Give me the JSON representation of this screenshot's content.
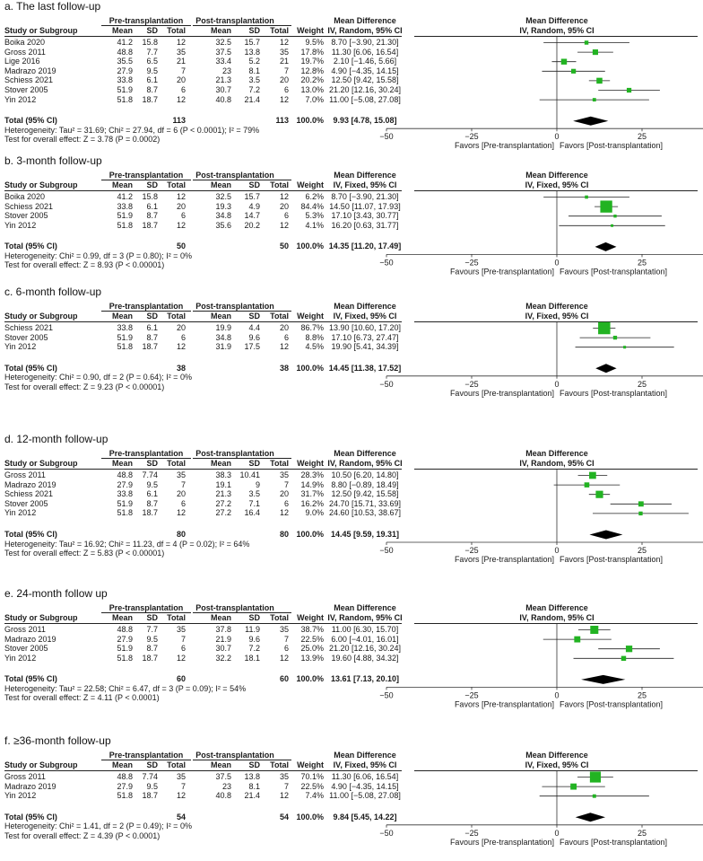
{
  "headers": {
    "study": "Study or Subgroup",
    "pre": "Pre-transplantation",
    "post": "Post-transplantation",
    "mean": "Mean",
    "sd": "SD",
    "total": "Total",
    "weight": "Weight",
    "md": "Mean Difference"
  },
  "axis_ticks": [
    "−50",
    "−25",
    "0",
    "25",
    "50"
  ],
  "chart_data": [
    {
      "type": "forest",
      "title": "a. The last follow-up",
      "method": "IV, Random, 95% CI",
      "favors_left": "Favors [Pre-transplantation]",
      "favors_right": "Favors [Post-transplantation]",
      "xlim": [
        -50,
        50
      ],
      "rows": [
        {
          "study": "Boika 2020",
          "pre_mean": "41.2",
          "pre_sd": "15.8",
          "pre_n": "12",
          "post_mean": "32.5",
          "post_sd": "15.7",
          "post_n": "12",
          "weight": "9.5%",
          "ci_text": "8.70 [−3.90, 21.30]",
          "md": 8.7,
          "lo": -3.9,
          "hi": 21.3,
          "w": 9.5
        },
        {
          "study": "Gross 2011",
          "pre_mean": "48.8",
          "pre_sd": "7.7",
          "pre_n": "35",
          "post_mean": "37.5",
          "post_sd": "13.8",
          "post_n": "35",
          "weight": "17.8%",
          "ci_text": "11.30 [6.06, 16.54]",
          "md": 11.3,
          "lo": 6.06,
          "hi": 16.54,
          "w": 17.8
        },
        {
          "study": "Lige 2016",
          "pre_mean": "35.5",
          "pre_sd": "6.5",
          "pre_n": "21",
          "post_mean": "33.4",
          "post_sd": "5.2",
          "post_n": "21",
          "weight": "19.7%",
          "ci_text": "2.10 [−1.46, 5.66]",
          "md": 2.1,
          "lo": -1.46,
          "hi": 5.66,
          "w": 19.7
        },
        {
          "study": "Madrazo 2019",
          "pre_mean": "27.9",
          "pre_sd": "9.5",
          "pre_n": "7",
          "post_mean": "23",
          "post_sd": "8.1",
          "post_n": "7",
          "weight": "12.8%",
          "ci_text": "4.90 [−4.35, 14.15]",
          "md": 4.9,
          "lo": -4.35,
          "hi": 14.15,
          "w": 12.8
        },
        {
          "study": "Schiess 2021",
          "pre_mean": "33.8",
          "pre_sd": "6.1",
          "pre_n": "20",
          "post_mean": "21.3",
          "post_sd": "3.5",
          "post_n": "20",
          "weight": "20.2%",
          "ci_text": "12.50 [9.42, 15.58]",
          "md": 12.5,
          "lo": 9.42,
          "hi": 15.58,
          "w": 20.2
        },
        {
          "study": "Stover 2005",
          "pre_mean": "51.9",
          "pre_sd": "8.7",
          "pre_n": "6",
          "post_mean": "30.7",
          "post_sd": "7.2",
          "post_n": "6",
          "weight": "13.0%",
          "ci_text": "21.20 [12.16, 30.24]",
          "md": 21.2,
          "lo": 12.16,
          "hi": 30.24,
          "w": 13.0
        },
        {
          "study": "Yin 2012",
          "pre_mean": "51.8",
          "pre_sd": "18.7",
          "pre_n": "12",
          "post_mean": "40.8",
          "post_sd": "21.4",
          "post_n": "12",
          "weight": "7.0%",
          "ci_text": "11.00 [−5.08, 27.08]",
          "md": 11.0,
          "lo": -5.08,
          "hi": 27.08,
          "w": 7.0
        }
      ],
      "total": {
        "label": "Total (95% CI)",
        "pre_n": "113",
        "post_n": "113",
        "weight": "100.0%",
        "ci_text": "9.93 [4.78, 15.08]",
        "md": 9.93,
        "lo": 4.78,
        "hi": 15.08
      },
      "heterogeneity": "Heterogeneity: Tau² = 31.69; Chi² = 27.94, df = 6 (P < 0.0001); I² = 79%",
      "overall": "Test for overall effect: Z = 3.78 (P = 0.0002)"
    },
    {
      "type": "forest",
      "title": "b. 3-month follow-up",
      "method": "IV, Fixed, 95% CI",
      "favors_left": "Favours [Pre-transplantation]",
      "favors_right": "Favours [Post-transplantation]",
      "xlim": [
        -50,
        50
      ],
      "rows": [
        {
          "study": "Boika 2020",
          "pre_mean": "41.2",
          "pre_sd": "15.8",
          "pre_n": "12",
          "post_mean": "32.5",
          "post_sd": "15.7",
          "post_n": "12",
          "weight": "6.2%",
          "ci_text": "8.70 [−3.90, 21.30]",
          "md": 8.7,
          "lo": -3.9,
          "hi": 21.3,
          "w": 6.2
        },
        {
          "study": "Schiess 2021",
          "pre_mean": "33.8",
          "pre_sd": "6.1",
          "pre_n": "20",
          "post_mean": "19.3",
          "post_sd": "4.9",
          "post_n": "20",
          "weight": "84.4%",
          "ci_text": "14.50 [11.07, 17.93]",
          "md": 14.5,
          "lo": 11.07,
          "hi": 17.93,
          "w": 84.4
        },
        {
          "study": "Stover 2005",
          "pre_mean": "51.9",
          "pre_sd": "8.7",
          "pre_n": "6",
          "post_mean": "34.8",
          "post_sd": "14.7",
          "post_n": "6",
          "weight": "5.3%",
          "ci_text": "17.10 [3.43, 30.77]",
          "md": 17.1,
          "lo": 3.43,
          "hi": 30.77,
          "w": 5.3
        },
        {
          "study": "Yin 2012",
          "pre_mean": "51.8",
          "pre_sd": "18.7",
          "pre_n": "12",
          "post_mean": "35.6",
          "post_sd": "20.2",
          "post_n": "12",
          "weight": "4.1%",
          "ci_text": "16.20 [0.63, 31.77]",
          "md": 16.2,
          "lo": 0.63,
          "hi": 31.77,
          "w": 4.1
        }
      ],
      "total": {
        "label": "Total (95% CI)",
        "pre_n": "50",
        "post_n": "50",
        "weight": "100.0%",
        "ci_text": "14.35 [11.20, 17.49]",
        "md": 14.35,
        "lo": 11.2,
        "hi": 17.49
      },
      "heterogeneity": "Heterogeneity: Chi² = 0.99, df = 3 (P = 0.80); I² = 0%",
      "overall": "Test for overall effect: Z = 8.93 (P < 0.00001)"
    },
    {
      "type": "forest",
      "title": "c. 6-month follow-up",
      "method": "IV, Fixed, 95% CI",
      "favors_left": "Favours [Pre-transplantation]",
      "favors_right": "Favours [Post-transplantation]",
      "xlim": [
        -50,
        50
      ],
      "rows": [
        {
          "study": "Schiess 2021",
          "pre_mean": "33.8",
          "pre_sd": "6.1",
          "pre_n": "20",
          "post_mean": "19.9",
          "post_sd": "4.4",
          "post_n": "20",
          "weight": "86.7%",
          "ci_text": "13.90 [10.60, 17.20]",
          "md": 13.9,
          "lo": 10.6,
          "hi": 17.2,
          "w": 86.7
        },
        {
          "study": "Stover 2005",
          "pre_mean": "51.9",
          "pre_sd": "8.7",
          "pre_n": "6",
          "post_mean": "34.8",
          "post_sd": "9.6",
          "post_n": "6",
          "weight": "8.8%",
          "ci_text": "17.10 [6.73, 27.47]",
          "md": 17.1,
          "lo": 6.73,
          "hi": 27.47,
          "w": 8.8
        },
        {
          "study": "Yin 2012",
          "pre_mean": "51.8",
          "pre_sd": "18.7",
          "pre_n": "12",
          "post_mean": "31.9",
          "post_sd": "17.5",
          "post_n": "12",
          "weight": "4.5%",
          "ci_text": "19.90 [5.41, 34.39]",
          "md": 19.9,
          "lo": 5.41,
          "hi": 34.39,
          "w": 4.5
        }
      ],
      "total": {
        "label": "Total (95% CI)",
        "pre_n": "38",
        "post_n": "38",
        "weight": "100.0%",
        "ci_text": "14.45 [11.38, 17.52]",
        "md": 14.45,
        "lo": 11.38,
        "hi": 17.52
      },
      "heterogeneity": "Heterogeneity: Chi² = 0.90, df = 2 (P = 0.64); I² = 0%",
      "overall": "Test for overall effect: Z = 9.23 (P < 0.00001)"
    },
    {
      "type": "forest",
      "title": "d. 12-month follow-up",
      "method": "IV, Random, 95% CI",
      "favors_left": "Favors [Pre-transplantation]",
      "favors_right": "Favors [Post-transplantation]",
      "xlim": [
        -50,
        50
      ],
      "rows": [
        {
          "study": "Gross 2011",
          "pre_mean": "48.8",
          "pre_sd": "7.74",
          "pre_n": "35",
          "post_mean": "38.3",
          "post_sd": "10.41",
          "post_n": "35",
          "weight": "28.3%",
          "ci_text": "10.50 [6.20, 14.80]",
          "md": 10.5,
          "lo": 6.2,
          "hi": 14.8,
          "w": 28.3
        },
        {
          "study": "Madrazo 2019",
          "pre_mean": "27.9",
          "pre_sd": "9.5",
          "pre_n": "7",
          "post_mean": "19.1",
          "post_sd": "9",
          "post_n": "7",
          "weight": "14.9%",
          "ci_text": "8.80 [−0.89, 18.49]",
          "md": 8.8,
          "lo": -0.89,
          "hi": 18.49,
          "w": 14.9
        },
        {
          "study": "Schiess 2021",
          "pre_mean": "33.8",
          "pre_sd": "6.1",
          "pre_n": "20",
          "post_mean": "21.3",
          "post_sd": "3.5",
          "post_n": "20",
          "weight": "31.7%",
          "ci_text": "12.50 [9.42, 15.58]",
          "md": 12.5,
          "lo": 9.42,
          "hi": 15.58,
          "w": 31.7
        },
        {
          "study": "Stover 2005",
          "pre_mean": "51.9",
          "pre_sd": "8.7",
          "pre_n": "6",
          "post_mean": "27.2",
          "post_sd": "7.1",
          "post_n": "6",
          "weight": "16.2%",
          "ci_text": "24.70 [15.71, 33.69]",
          "md": 24.7,
          "lo": 15.71,
          "hi": 33.69,
          "w": 16.2
        },
        {
          "study": "Yin 2012",
          "pre_mean": "51.8",
          "pre_sd": "18.7",
          "pre_n": "12",
          "post_mean": "27.2",
          "post_sd": "16.4",
          "post_n": "12",
          "weight": "9.0%",
          "ci_text": "24.60 [10.53, 38.67]",
          "md": 24.6,
          "lo": 10.53,
          "hi": 38.67,
          "w": 9.0
        }
      ],
      "total": {
        "label": "Total (95% CI)",
        "pre_n": "80",
        "post_n": "80",
        "weight": "100.0%",
        "ci_text": "14.45 [9.59, 19.31]",
        "md": 14.45,
        "lo": 9.59,
        "hi": 19.31
      },
      "heterogeneity": "Heterogeneity: Tau² = 16.92; Chi² = 11.23, df = 4 (P = 0.02); I² = 64%",
      "overall": "Test for overall effect: Z = 5.83 (P < 0.00001)"
    },
    {
      "type": "forest",
      "title": "e. 24-month follow up",
      "method": "IV, Random, 95% CI",
      "favors_left": "Favors [Pre-transplantation]",
      "favors_right": "Favors [Post-transplantation]",
      "xlim": [
        -50,
        50
      ],
      "rows": [
        {
          "study": "Gross 2011",
          "pre_mean": "48.8",
          "pre_sd": "7.7",
          "pre_n": "35",
          "post_mean": "37.8",
          "post_sd": "11.9",
          "post_n": "35",
          "weight": "38.7%",
          "ci_text": "11.00 [6.30, 15.70]",
          "md": 11.0,
          "lo": 6.3,
          "hi": 15.7,
          "w": 38.7
        },
        {
          "study": "Madrazo 2019",
          "pre_mean": "27.9",
          "pre_sd": "9.5",
          "pre_n": "7",
          "post_mean": "21.9",
          "post_sd": "9.6",
          "post_n": "7",
          "weight": "22.5%",
          "ci_text": "6.00 [−4.01, 16.01]",
          "md": 6.0,
          "lo": -4.01,
          "hi": 16.01,
          "w": 22.5
        },
        {
          "study": "Stover 2005",
          "pre_mean": "51.9",
          "pre_sd": "8.7",
          "pre_n": "6",
          "post_mean": "30.7",
          "post_sd": "7.2",
          "post_n": "6",
          "weight": "25.0%",
          "ci_text": "21.20 [12.16, 30.24]",
          "md": 21.2,
          "lo": 12.16,
          "hi": 30.24,
          "w": 25.0
        },
        {
          "study": "Yin 2012",
          "pre_mean": "51.8",
          "pre_sd": "18.7",
          "pre_n": "12",
          "post_mean": "32.2",
          "post_sd": "18.1",
          "post_n": "12",
          "weight": "13.9%",
          "ci_text": "19.60 [4.88, 34.32]",
          "md": 19.6,
          "lo": 4.88,
          "hi": 34.32,
          "w": 13.9
        }
      ],
      "total": {
        "label": "Total (95% CI)",
        "pre_n": "60",
        "post_n": "60",
        "weight": "100.0%",
        "ci_text": "13.61 [7.13, 20.10]",
        "md": 13.61,
        "lo": 7.13,
        "hi": 20.1
      },
      "heterogeneity": "Heterogeneity: Tau² = 22.58; Chi² = 6.47, df = 3 (P = 0.09); I² = 54%",
      "overall": "Test for overall effect: Z = 4.11 (P < 0.0001)"
    },
    {
      "type": "forest",
      "title": "f. ≥36-month follow-up",
      "method": "IV, Fixed, 95% CI",
      "favors_left": "Favours [Pre-transplantation]",
      "favors_right": "Favours [Post-transplantation]",
      "xlim": [
        -50,
        50
      ],
      "rows": [
        {
          "study": "Gross 2011",
          "pre_mean": "48.8",
          "pre_sd": "7.74",
          "pre_n": "35",
          "post_mean": "37.5",
          "post_sd": "13.8",
          "post_n": "35",
          "weight": "70.1%",
          "ci_text": "11.30 [6.06, 16.54]",
          "md": 11.3,
          "lo": 6.06,
          "hi": 16.54,
          "w": 70.1
        },
        {
          "study": "Madrazo 2019",
          "pre_mean": "27.9",
          "pre_sd": "9.5",
          "pre_n": "7",
          "post_mean": "23",
          "post_sd": "8.1",
          "post_n": "7",
          "weight": "22.5%",
          "ci_text": "4.90 [−4.35, 14.15]",
          "md": 4.9,
          "lo": -4.35,
          "hi": 14.15,
          "w": 22.5
        },
        {
          "study": "Yin 2012",
          "pre_mean": "51.8",
          "pre_sd": "18.7",
          "pre_n": "12",
          "post_mean": "40.8",
          "post_sd": "21.4",
          "post_n": "12",
          "weight": "7.4%",
          "ci_text": "11.00 [−5.08, 27.08]",
          "md": 11.0,
          "lo": -5.08,
          "hi": 27.08,
          "w": 7.4
        }
      ],
      "total": {
        "label": "Total (95% CI)",
        "pre_n": "54",
        "post_n": "54",
        "weight": "100.0%",
        "ci_text": "9.84 [5.45, 14.22]",
        "md": 9.84,
        "lo": 5.45,
        "hi": 14.22
      },
      "heterogeneity": "Heterogeneity: Chi² = 1.41, df = 2 (P = 0.49); I² = 0%",
      "overall": "Test for overall effect: Z = 4.39 (P < 0.0001)"
    }
  ],
  "colors": {
    "marker": "#22b322",
    "diamond": "#000000",
    "text": "#1a1a1a"
  }
}
